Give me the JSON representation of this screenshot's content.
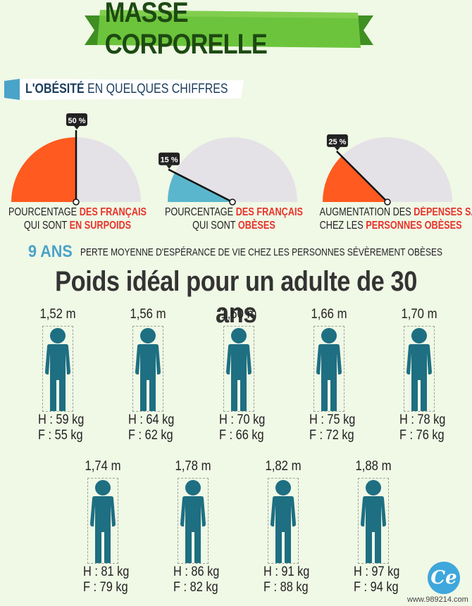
{
  "title": "MASSE CORPORELLE",
  "subtitle": {
    "bold": "L'OBÉSITÉ",
    "rest": " EN QUELQUES CHIFFRES"
  },
  "gauges": [
    {
      "percent_label": "50 %",
      "value": 50,
      "fill": "#ff5a1f",
      "line1_plain": "POURCENTAGE ",
      "line1_red": "DES FRANÇAIS",
      "line2_plain": "QUI SONT ",
      "line2_red": "EN SURPOIDS"
    },
    {
      "percent_label": "15 %",
      "value": 15,
      "fill": "#5ab6cc",
      "line1_plain": "POURCENTAGE ",
      "line1_red": "DES FRANÇAIS",
      "line2_plain": "QUI SONT ",
      "line2_red": "OBÈSES"
    },
    {
      "percent_label": "25 %",
      "value": 25,
      "fill": "#ff5a1f",
      "line1_plain": "AUGMENTATION DES ",
      "line1_red": "DÉPENSES SANTÉ",
      "line2_plain": "CHEZ LES ",
      "line2_red": "PERSONNES OBÈSES"
    }
  ],
  "years": {
    "value": "9 ANS",
    "text": "PERTE MOYENNE D'ESPÉRANCE DE VIE CHEZ LES PERSONNES SÉVÈREMENT OBÈSES"
  },
  "heading": "Poids idéal pour un adulte de 30 ans",
  "people": [
    {
      "height": "1,52 m",
      "h": "H : 59 kg",
      "f": "F : 55 kg"
    },
    {
      "height": "1,56 m",
      "h": "H : 64 kg",
      "f": "F : 62 kg"
    },
    {
      "height": "1,60 m",
      "h": "H : 70 kg",
      "f": "F : 66 kg"
    },
    {
      "height": "1,66 m",
      "h": "H : 75 kg",
      "f": "F : 72 kg"
    },
    {
      "height": "1,70 m",
      "h": "H : 78 kg",
      "f": "F : 76 kg"
    },
    {
      "height": "1,74 m",
      "h": "H : 81 kg",
      "f": "F : 79 kg"
    },
    {
      "height": "1,78 m",
      "h": "H : 86 kg",
      "f": "F : 82 kg"
    },
    {
      "height": "1,82 m",
      "h": "H : 91 kg",
      "f": "F : 88 kg"
    },
    {
      "height": "1,88 m",
      "h": "H : 97 kg",
      "f": "F : 94 kg"
    }
  ],
  "logo": "Ce",
  "watermark": "www.989214.com",
  "colors": {
    "figure": "#1e6f82",
    "banner_green": "#6cc43c",
    "accent_red": "#e8332a",
    "gauge_grey": "#e4e2e6"
  }
}
